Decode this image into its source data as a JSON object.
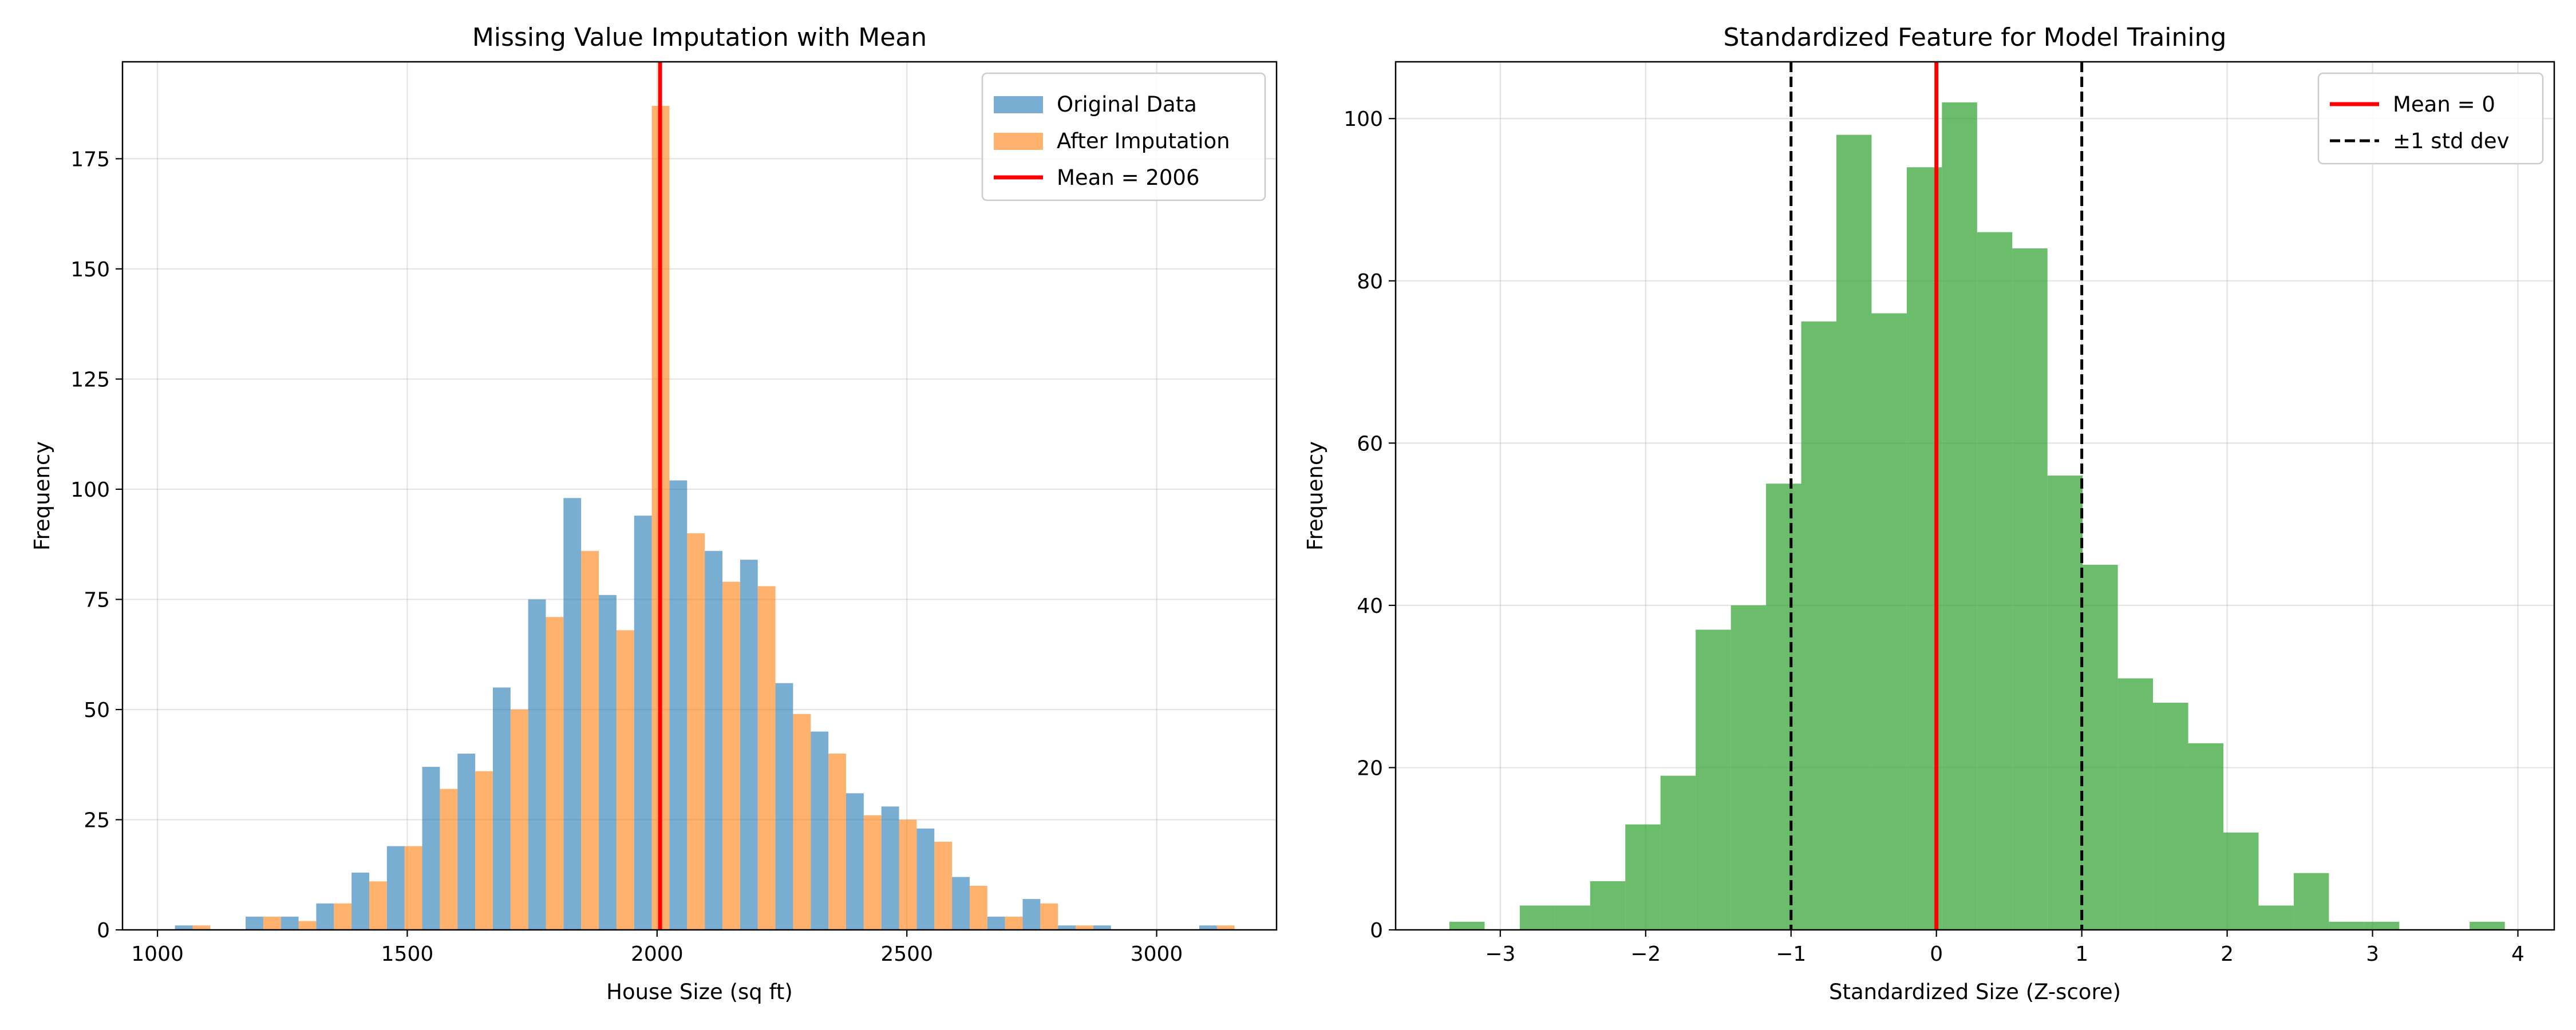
{
  "chart_data": [
    {
      "type": "bar",
      "title": "Missing Value Imputation with Mean",
      "xlabel": "House Size (sq ft)",
      "ylabel": "Frequency",
      "xlim": [
        930,
        3240
      ],
      "ylim": [
        0,
        197
      ],
      "xticks": [
        1000,
        1500,
        2000,
        2500,
        3000
      ],
      "yticks": [
        0,
        25,
        50,
        75,
        100,
        125,
        150,
        175
      ],
      "grid": true,
      "legend_position": "top-right",
      "bin_start": 1035,
      "bin_width": 70.7,
      "series": [
        {
          "name": "Original Data",
          "color": "#1f77b4",
          "values": [
            1,
            0,
            3,
            3,
            6,
            13,
            19,
            37,
            40,
            55,
            75,
            98,
            76,
            94,
            102,
            86,
            84,
            56,
            45,
            31,
            28,
            23,
            12,
            3,
            7,
            1,
            1,
            0,
            0,
            1
          ]
        },
        {
          "name": "After Imputation",
          "color": "#ff7f0e",
          "values": [
            1,
            0,
            3,
            2,
            6,
            11,
            19,
            32,
            36,
            50,
            71,
            86,
            68,
            187,
            90,
            79,
            78,
            49,
            40,
            26,
            25,
            20,
            10,
            3,
            6,
            1,
            0,
            0,
            0,
            1
          ]
        }
      ],
      "vline": {
        "x": 2006,
        "label": "Mean = 2006",
        "color": "#ff0000"
      }
    },
    {
      "type": "bar",
      "title": "Standardized Feature for Model Training",
      "xlabel": "Standardized Size (Z-score)",
      "ylabel": "Frequency",
      "xlim": [
        -3.72,
        4.25
      ],
      "ylim": [
        0,
        107
      ],
      "xticks": [
        -3,
        -2,
        -1,
        0,
        1,
        2,
        3,
        4
      ],
      "xtick_labels": [
        "−3",
        "−2",
        "−1",
        "0",
        "1",
        "2",
        "3",
        "4"
      ],
      "yticks": [
        0,
        20,
        40,
        60,
        80,
        100
      ],
      "grid": true,
      "legend_position": "top-right",
      "bin_start": -3.35,
      "bin_width": 0.242,
      "series": [
        {
          "name": "",
          "color": "#2ca02c",
          "values": [
            1,
            0,
            3,
            3,
            6,
            13,
            19,
            37,
            40,
            55,
            75,
            98,
            76,
            94,
            102,
            86,
            84,
            56,
            45,
            31,
            28,
            23,
            12,
            3,
            7,
            1,
            1,
            0,
            0,
            1
          ]
        }
      ],
      "vlines": [
        {
          "x": 0,
          "label": "Mean = 0",
          "color": "#ff0000",
          "style": "solid"
        },
        {
          "x": -1,
          "label": "±1 std dev",
          "color": "#000000",
          "style": "dashed"
        },
        {
          "x": 1,
          "label": "",
          "color": "#000000",
          "style": "dashed"
        }
      ]
    }
  ]
}
